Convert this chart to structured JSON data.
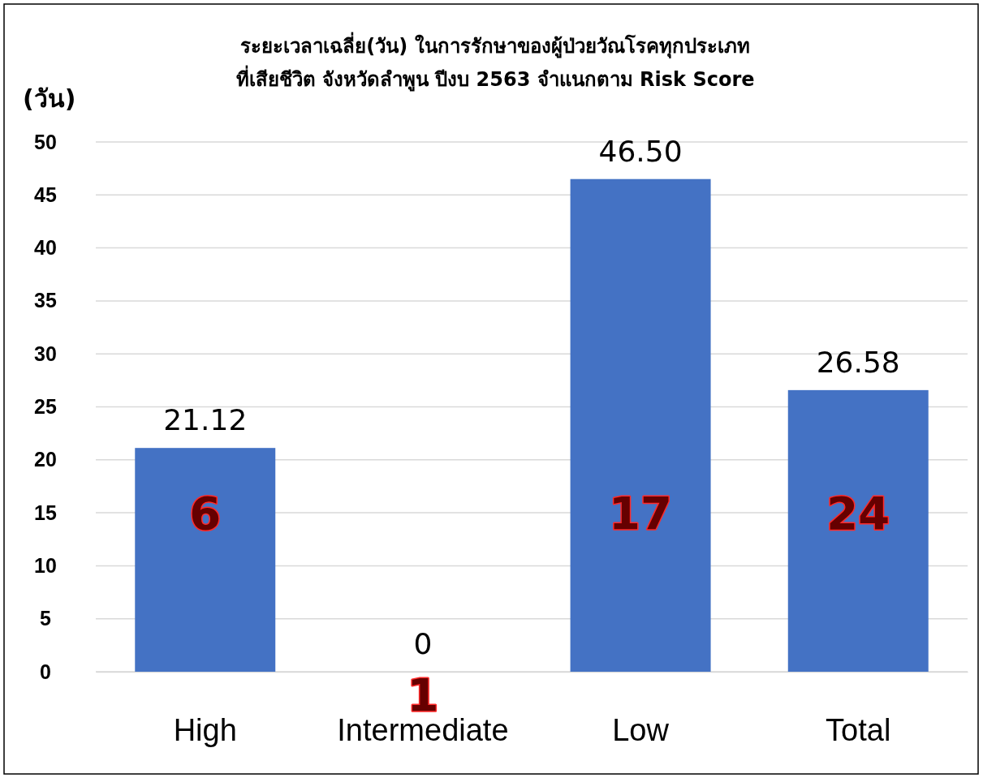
{
  "chart_data": {
    "type": "bar",
    "title": "ระยะเวลาเฉลี่ย(วัน) ในการรักษาของผู้ป่วยวัณโรคทุกประเภท\nที่เสียชีวิต จังหวัดลำพูน ปีงบ 2563 จำแนกตาม Risk Score",
    "ylabel": "(วัน)",
    "categories": [
      "High",
      "Intermediate",
      "Low",
      "Total"
    ],
    "values": [
      21.12,
      0,
      46.5,
      26.58
    ],
    "color": "#4472c4",
    "value_labels": [
      "21.12",
      "0",
      "46.50",
      "26.58"
    ],
    "ylim": [
      0,
      50
    ],
    "yticks": [
      0,
      5,
      10,
      15,
      20,
      25,
      30,
      35,
      40,
      45,
      50
    ],
    "grid": "y",
    "annotations": [
      "6",
      "1",
      "17",
      "24"
    ]
  }
}
